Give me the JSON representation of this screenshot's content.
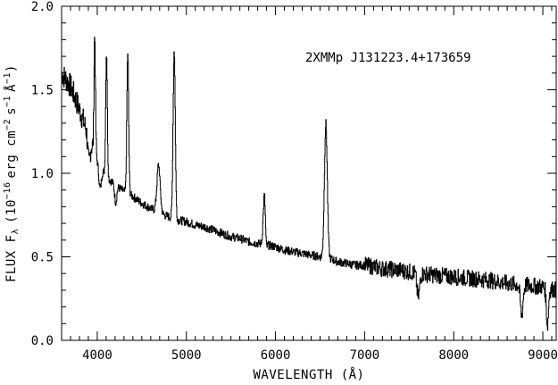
{
  "chart_data": {
    "type": "line",
    "title": "",
    "annotation": "2XMMp J131223.4+173659",
    "xlabel": "WAVELENGTH (Å)",
    "ylabel_parts": {
      "main": "FLUX F",
      "sub": "λ",
      "units_open": "(10",
      "exp1": "−16",
      "erg": "erg cm",
      "exp2": "−2",
      "s": "s",
      "exp3": "−1",
      "ang": "Å",
      "exp4": "−1",
      "close": ")"
    },
    "xlim": [
      3600,
      9150
    ],
    "ylim": [
      0,
      2.0
    ],
    "x_major_ticks": [
      4000,
      5000,
      6000,
      7000,
      8000,
      9000
    ],
    "x_tick_labels": [
      "4000",
      "5000",
      "6000",
      "7000",
      "8000",
      "9000"
    ],
    "y_major_ticks": [
      0,
      0.5,
      1.0,
      1.5,
      2.0
    ],
    "y_tick_labels": [
      "0.0",
      "0.5",
      "1.0",
      "1.5",
      "2.0"
    ],
    "grid": false,
    "line_color": "#000000",
    "series": [
      {
        "continuum": [
          [
            3600,
            1.6
          ],
          [
            3700,
            1.52
          ],
          [
            3800,
            1.38
          ],
          [
            3900,
            1.22
          ],
          [
            4000,
            1.08
          ],
          [
            4100,
            0.98
          ],
          [
            4200,
            0.93
          ],
          [
            4300,
            0.89
          ],
          [
            4400,
            0.86
          ],
          [
            4500,
            0.82
          ],
          [
            4600,
            0.79
          ],
          [
            4700,
            0.76
          ],
          [
            4800,
            0.74
          ],
          [
            4900,
            0.72
          ],
          [
            5000,
            0.71
          ],
          [
            5100,
            0.69
          ],
          [
            5200,
            0.68
          ],
          [
            5300,
            0.66
          ],
          [
            5400,
            0.64
          ],
          [
            5500,
            0.62
          ],
          [
            5600,
            0.61
          ],
          [
            5700,
            0.59
          ],
          [
            5800,
            0.58
          ],
          [
            5900,
            0.57
          ],
          [
            6000,
            0.56
          ],
          [
            6100,
            0.54
          ],
          [
            6200,
            0.53
          ],
          [
            6300,
            0.52
          ],
          [
            6400,
            0.51
          ],
          [
            6500,
            0.5
          ],
          [
            6600,
            0.49
          ],
          [
            6700,
            0.47
          ],
          [
            6800,
            0.46
          ],
          [
            6900,
            0.45
          ],
          [
            7000,
            0.45
          ],
          [
            7200,
            0.43
          ],
          [
            7400,
            0.42
          ],
          [
            7600,
            0.4
          ],
          [
            7800,
            0.39
          ],
          [
            8000,
            0.38
          ],
          [
            8200,
            0.37
          ],
          [
            8400,
            0.36
          ],
          [
            8600,
            0.34
          ],
          [
            8800,
            0.33
          ],
          [
            9000,
            0.32
          ],
          [
            9150,
            0.3
          ]
        ],
        "emission_lines": [
          {
            "center": 3970,
            "peak": 1.82,
            "width": 8
          },
          {
            "center": 4102,
            "peak": 1.72,
            "width": 9
          },
          {
            "center": 4340,
            "peak": 1.72,
            "width": 10
          },
          {
            "center": 4686,
            "peak": 1.05,
            "width": 18
          },
          {
            "center": 4861,
            "peak": 1.74,
            "width": 12
          },
          {
            "center": 5876,
            "peak": 0.91,
            "width": 14
          },
          {
            "center": 6563,
            "peak": 1.3,
            "width": 16
          }
        ],
        "absorption_dips": [
          {
            "center": 3905,
            "depth": 0.16,
            "width": 12
          },
          {
            "center": 4030,
            "depth": 0.14,
            "width": 14
          },
          {
            "center": 4205,
            "depth": 0.1,
            "width": 12
          },
          {
            "center": 5890,
            "depth": 0.14,
            "width": 10
          },
          {
            "center": 7600,
            "depth": 0.14,
            "width": 15
          },
          {
            "center": 8760,
            "depth": 0.18,
            "width": 15
          },
          {
            "center": 9050,
            "depth": 0.22,
            "width": 12
          }
        ]
      }
    ]
  }
}
